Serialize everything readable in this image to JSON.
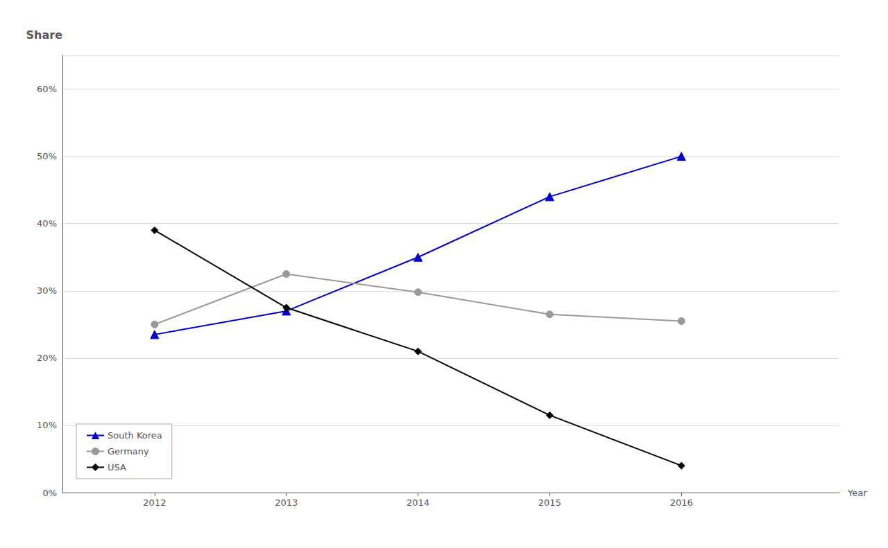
{
  "chart_data": {
    "type": "line",
    "xlabel": "Year",
    "ylabel": "Share",
    "x": [
      2012,
      2013,
      2014,
      2015,
      2016
    ],
    "xlim": [
      2011.3,
      2017.2
    ],
    "xticks": [
      2012,
      2013,
      2014,
      2015,
      2016
    ],
    "ylim": [
      0,
      0.65
    ],
    "yticks": [
      {
        "value": 0.0,
        "label": "0%"
      },
      {
        "value": 0.1,
        "label": "10%"
      },
      {
        "value": 0.2,
        "label": "20%"
      },
      {
        "value": 0.3,
        "label": "30%"
      },
      {
        "value": 0.4,
        "label": "40%"
      },
      {
        "value": 0.5,
        "label": "50%"
      },
      {
        "value": 0.6,
        "label": "60%"
      }
    ],
    "grid": true,
    "legend": "lower left",
    "series": [
      {
        "name": "South Korea",
        "color": "#0000cc",
        "marker": "triangle",
        "values": [
          0.235,
          0.27,
          0.35,
          0.44,
          0.5
        ]
      },
      {
        "name": "Germany",
        "color": "#999999",
        "marker": "circle",
        "values": [
          0.25,
          0.325,
          0.298,
          0.265,
          0.255
        ]
      },
      {
        "name": "USA",
        "color": "#000000",
        "marker": "diamond",
        "values": [
          0.39,
          0.275,
          0.21,
          0.115,
          0.04
        ]
      }
    ]
  }
}
